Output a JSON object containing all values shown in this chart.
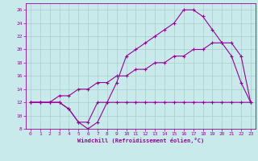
{
  "xlabel": "Windchill (Refroidissement éolien,°C)",
  "background_color": "#c8eaea",
  "grid_color": "#aacccc",
  "line_color": "#990099",
  "xlim": [
    -0.5,
    23.5
  ],
  "ylim": [
    8,
    27
  ],
  "xticks": [
    0,
    1,
    2,
    3,
    4,
    5,
    6,
    7,
    8,
    9,
    10,
    11,
    12,
    13,
    14,
    15,
    16,
    17,
    18,
    19,
    20,
    21,
    22,
    23
  ],
  "yticks": [
    8,
    10,
    12,
    14,
    16,
    18,
    20,
    22,
    24,
    26
  ],
  "line1_x": [
    0,
    1,
    2,
    3,
    4,
    5,
    6,
    7,
    8,
    9,
    10,
    11,
    12,
    13,
    14,
    15,
    16,
    17,
    18,
    19,
    20,
    21,
    22,
    23
  ],
  "line1_y": [
    12,
    12,
    12,
    12,
    11,
    9,
    9,
    12,
    12,
    12,
    12,
    12,
    12,
    12,
    12,
    12,
    12,
    12,
    12,
    12,
    12,
    12,
    12,
    12
  ],
  "line2_x": [
    0,
    1,
    2,
    3,
    4,
    5,
    6,
    7,
    8,
    9,
    10,
    11,
    12,
    13,
    14,
    15,
    16,
    17,
    18,
    19,
    20,
    21,
    22,
    23
  ],
  "line2_y": [
    12,
    12,
    12,
    12,
    11,
    9,
    8,
    9,
    12,
    15,
    19,
    20,
    21,
    22,
    23,
    24,
    26,
    26,
    25,
    23,
    21,
    19,
    15,
    12
  ],
  "line3_x": [
    0,
    1,
    2,
    3,
    4,
    5,
    6,
    7,
    8,
    9,
    10,
    11,
    12,
    13,
    14,
    15,
    16,
    17,
    18,
    19,
    20,
    21,
    22,
    23
  ],
  "line3_y": [
    12,
    12,
    12,
    13,
    13,
    14,
    14,
    15,
    15,
    16,
    16,
    17,
    17,
    18,
    18,
    19,
    19,
    20,
    20,
    21,
    21,
    21,
    19,
    12
  ]
}
